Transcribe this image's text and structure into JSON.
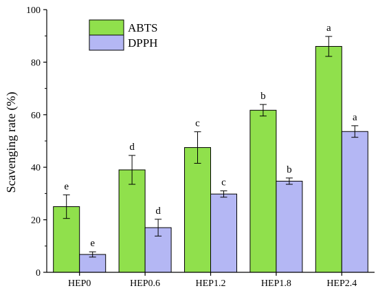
{
  "chart_data": {
    "type": "bar",
    "title": "",
    "xlabel": "",
    "ylabel": "Scavenging rate (%)",
    "ylim": [
      0,
      100
    ],
    "yticks": [
      0,
      20,
      40,
      60,
      80,
      100
    ],
    "grid": false,
    "legend_position": "top-left",
    "categories": [
      "HEP0",
      "HEP0.6",
      "HEP1.2",
      "HEP1.8",
      "HEP2.4"
    ],
    "series": [
      {
        "name": "ABTS",
        "color": "#90e04c",
        "values": [
          25.0,
          39.0,
          47.5,
          61.7,
          86.0
        ],
        "errors": [
          4.5,
          5.5,
          6.0,
          2.2,
          3.8
        ],
        "labels": [
          "e",
          "d",
          "c",
          "b",
          "a"
        ]
      },
      {
        "name": "DPPH",
        "color": "#b4b7f4",
        "values": [
          6.8,
          17.0,
          29.8,
          34.7,
          53.6
        ],
        "errors": [
          1.0,
          3.2,
          1.2,
          1.2,
          2.2
        ],
        "labels": [
          "e",
          "d",
          "c",
          "b",
          "a"
        ]
      }
    ]
  }
}
